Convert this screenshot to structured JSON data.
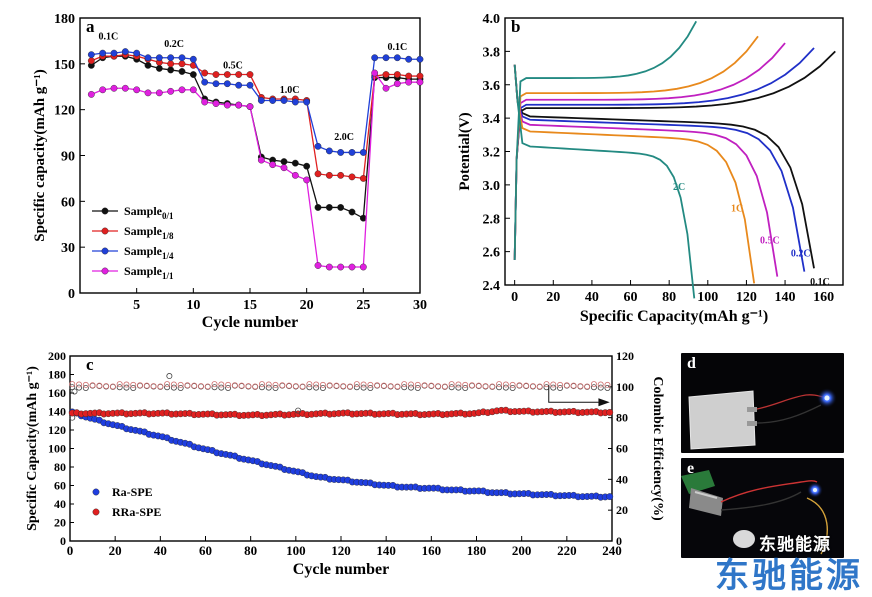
{
  "chart_data": [
    {
      "panel": "a",
      "type": "scatter",
      "xlabel": "Cycle number",
      "ylabel": "Specific capacity(mAh g⁻¹)",
      "xlim": [
        0,
        30
      ],
      "ylim": [
        0,
        180
      ],
      "xticks": [
        5,
        10,
        15,
        20,
        25,
        30
      ],
      "yticks": [
        0,
        30,
        60,
        90,
        120,
        150,
        180
      ],
      "rate_labels": [
        {
          "text": "0.1C",
          "x": 2.5,
          "y": 166
        },
        {
          "text": "0.2C",
          "x": 8.3,
          "y": 161
        },
        {
          "text": "0.5C",
          "x": 13.5,
          "y": 147
        },
        {
          "text": "1.0C",
          "x": 18.5,
          "y": 131
        },
        {
          "text": "2.0C",
          "x": 23.3,
          "y": 100
        },
        {
          "text": "0.1C",
          "x": 28,
          "y": 159
        }
      ],
      "legend": [
        "Sample0/1",
        "Sample1/8",
        "Sample1/4",
        "Sample1/1"
      ],
      "series": [
        {
          "name": "Sample0/1",
          "sub": "0/1",
          "color": "#111111",
          "values": [
            149,
            154,
            155,
            155,
            153,
            149,
            147,
            146,
            145,
            143,
            127,
            125,
            124,
            123,
            122,
            89,
            87,
            86,
            85,
            83,
            56,
            56,
            56,
            53,
            49,
            141,
            141,
            141,
            140,
            140
          ]
        },
        {
          "name": "Sample1/8",
          "sub": "1/8",
          "color": "#e02020",
          "values": [
            152,
            155,
            155,
            156,
            155,
            153,
            151,
            150,
            150,
            149,
            144,
            143,
            143,
            143,
            143,
            128,
            127,
            127,
            127,
            126,
            78,
            77,
            77,
            76,
            75,
            142,
            143,
            143,
            142,
            142
          ]
        },
        {
          "name": "Sample1/4",
          "sub": "1/4",
          "color": "#2040d8",
          "values": [
            156,
            157,
            157,
            158,
            157,
            154,
            154,
            154,
            154,
            153,
            138,
            137,
            137,
            136,
            136,
            126,
            126,
            126,
            125,
            125,
            96,
            93,
            92,
            92,
            92,
            154,
            154,
            154,
            153,
            153
          ]
        },
        {
          "name": "Sample1/1",
          "sub": "1/1",
          "color": "#e020e0",
          "values": [
            130,
            133,
            134,
            134,
            133,
            131,
            131,
            132,
            133,
            133,
            125,
            124,
            123,
            123,
            122,
            87,
            84,
            82,
            77,
            74,
            18,
            17,
            17,
            17,
            17,
            144,
            134,
            137,
            138,
            138
          ]
        }
      ]
    },
    {
      "panel": "b",
      "type": "line",
      "xlabel": "Specific Capacity(mAh g⁻¹)",
      "ylabel": "Potential(V)",
      "xlim": [
        -5,
        170
      ],
      "ylim": [
        2.4,
        4.0
      ],
      "xticks": [
        0,
        20,
        40,
        60,
        80,
        100,
        120,
        140,
        160
      ],
      "yticks": [
        2.4,
        2.6,
        2.8,
        3.0,
        3.2,
        3.4,
        3.6,
        3.8,
        4.0
      ],
      "series": [
        {
          "name": "0.1C",
          "color": "#111111",
          "charge_plateau": 3.46,
          "discharge_plateau": 3.41,
          "charge_end": 166,
          "discharge_end": 155,
          "label_at": [
            153,
            2.4
          ]
        },
        {
          "name": "0.2C",
          "color": "#2030c8",
          "charge_plateau": 3.48,
          "discharge_plateau": 3.39,
          "charge_end": 155,
          "discharge_end": 150,
          "label_at": [
            143,
            2.57
          ]
        },
        {
          "name": "0.5C",
          "color": "#c020c0",
          "charge_plateau": 3.51,
          "discharge_plateau": 3.36,
          "charge_end": 140,
          "discharge_end": 136,
          "label_at": [
            127,
            2.65
          ]
        },
        {
          "name": "1C",
          "color": "#e8891c",
          "charge_plateau": 3.55,
          "discharge_plateau": 3.32,
          "charge_end": 126,
          "discharge_end": 124,
          "label_at": [
            112,
            2.84
          ]
        },
        {
          "name": "2C",
          "color": "#238a82",
          "charge_plateau": 3.64,
          "discharge_plateau": 3.23,
          "charge_end": 94,
          "discharge_end": 93,
          "label_at": [
            82,
            2.97
          ]
        }
      ]
    },
    {
      "panel": "c",
      "type": "scatter",
      "xlabel": "Cycle number",
      "ylabel": "Specific Capacity(mAh g⁻¹)",
      "y2label": "Colombic Efficiency(%)",
      "xlim": [
        0,
        240
      ],
      "ylim": [
        0,
        200
      ],
      "y2lim": [
        0,
        120
      ],
      "xticks": [
        0,
        20,
        40,
        60,
        80,
        100,
        120,
        140,
        160,
        180,
        200,
        220,
        240
      ],
      "yticks": [
        0,
        20,
        40,
        60,
        80,
        100,
        120,
        140,
        160,
        180,
        200
      ],
      "y2ticks": [
        0,
        20,
        40,
        60,
        80,
        100,
        120
      ],
      "legend": [
        "Ra-SPE",
        "RRa-SPE"
      ],
      "series": [
        {
          "name": "Ra-SPE",
          "color": "#1f3ee0",
          "points": [
            [
              0,
              140
            ],
            [
              10,
              132
            ],
            [
              20,
              125
            ],
            [
              30,
              119
            ],
            [
              40,
              113
            ],
            [
              50,
              106
            ],
            [
              60,
              99
            ],
            [
              70,
              93
            ],
            [
              80,
              87
            ],
            [
              90,
              81
            ],
            [
              100,
              75
            ],
            [
              110,
              69
            ],
            [
              120,
              66
            ],
            [
              130,
              63
            ],
            [
              140,
              60
            ],
            [
              150,
              58
            ],
            [
              160,
              57
            ],
            [
              170,
              55
            ],
            [
              180,
              54
            ],
            [
              190,
              52
            ],
            [
              200,
              51
            ],
            [
              210,
              50
            ],
            [
              220,
              49
            ],
            [
              230,
              48
            ],
            [
              240,
              48
            ]
          ]
        },
        {
          "name": "RRa-SPE",
          "color": "#e02020",
          "points": [
            [
              0,
              138
            ],
            [
              40,
              138
            ],
            [
              80,
              136
            ],
            [
              120,
              138
            ],
            [
              160,
              137
            ],
            [
              180,
              138
            ],
            [
              190,
              141
            ],
            [
              200,
              140
            ],
            [
              240,
              139
            ]
          ]
        },
        {
          "name": "Ra-SPE CE",
          "color": "#444444",
          "axis": "y2",
          "value": 100
        },
        {
          "name": "RRa-SPE CE",
          "color": "#d07070",
          "axis": "y2",
          "value": 101
        }
      ]
    }
  ],
  "panel_labels": {
    "a": "a",
    "b": "b",
    "c": "c",
    "d": "d",
    "e": "e"
  },
  "watermark": {
    "small": "东驰能源",
    "large": "东驰能源"
  }
}
